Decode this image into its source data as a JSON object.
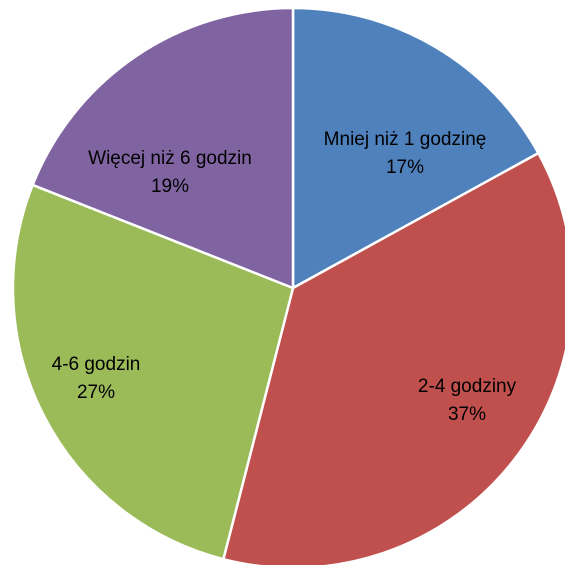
{
  "chart_data": {
    "type": "pie",
    "title": "",
    "slices": [
      {
        "label": "Mniej niż 1 godzinę",
        "value": 17,
        "percent_label": "17%",
        "color": "#4F81BD"
      },
      {
        "label": "2-4 godziny",
        "value": 37,
        "percent_label": "37%",
        "color": "#C0504D"
      },
      {
        "label": "4-6 godzin",
        "value": 27,
        "percent_label": "27%",
        "color": "#9BBB59"
      },
      {
        "label": "Więcej niż 6 godzin",
        "value": 19,
        "percent_label": "19%",
        "color": "#8064A2"
      }
    ],
    "start": "12 o'clock",
    "direction": "clockwise",
    "slice_border_color": "#FFFFFF",
    "legend": "none"
  }
}
